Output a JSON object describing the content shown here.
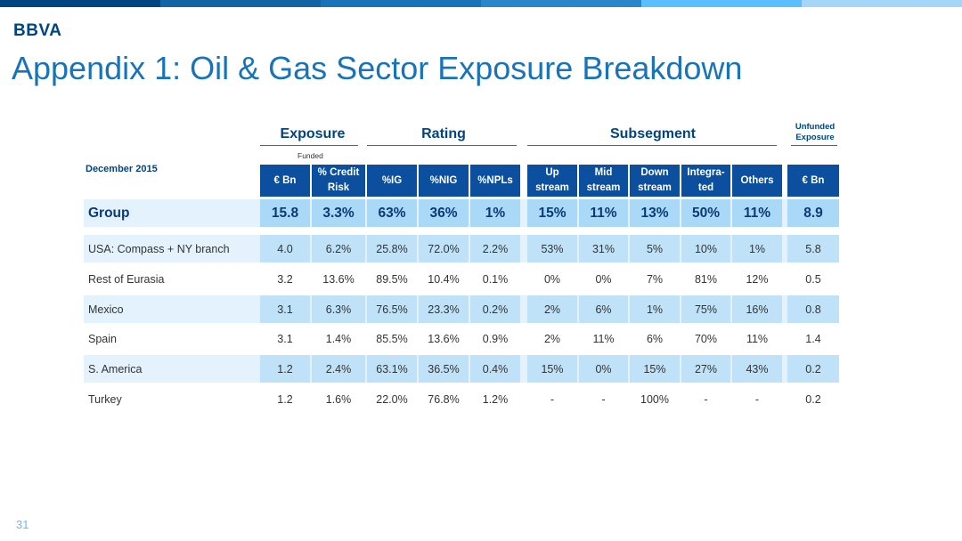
{
  "brand": {
    "logo_text": "BBVA",
    "bar_colors": [
      "#004481",
      "#1464A5",
      "#1973B8",
      "#2A86CA",
      "#5BBEFF",
      "#A5D6F7"
    ]
  },
  "title": "Appendix 1: Oil & Gas Sector Exposure Breakdown",
  "page_number": "31",
  "table": {
    "group_headers": {
      "exposure": "Exposure",
      "rating": "Rating",
      "subsegment": "Subsegment",
      "unfunded_line1": "Unfunded",
      "unfunded_line2": "Exposure"
    },
    "funded_label": "Funded",
    "date_label": "December 2015",
    "columns": [
      {
        "line1": "€ Bn",
        "line2": ""
      },
      {
        "line1": "% Credit",
        "line2": "Risk"
      },
      {
        "line1": "%IG",
        "line2": ""
      },
      {
        "line1": "%NIG",
        "line2": ""
      },
      {
        "line1": "%NPLs",
        "line2": ""
      },
      {
        "line1": "Up",
        "line2": "stream"
      },
      {
        "line1": "Mid",
        "line2": "stream"
      },
      {
        "line1": "Down",
        "line2": "stream"
      },
      {
        "line1": "Integra-",
        "line2": "ted"
      },
      {
        "line1": "Others",
        "line2": ""
      },
      {
        "line1": "€ Bn",
        "line2": ""
      }
    ],
    "group_row": {
      "label": "Group",
      "values": [
        "15.8",
        "3.3%",
        "63%",
        "36%",
        "1%",
        "15%",
        "11%",
        "13%",
        "50%",
        "11%",
        "8.9"
      ]
    },
    "rows": [
      {
        "label": "USA: Compass + NY branch",
        "values": [
          "4.0",
          "6.2%",
          "25.8%",
          "72.0%",
          "2.2%",
          "53%",
          "31%",
          "5%",
          "10%",
          "1%",
          "5.8"
        ]
      },
      {
        "label": "Rest of Eurasia",
        "values": [
          "3.2",
          "13.6%",
          "89.5%",
          "10.4%",
          "0.1%",
          "0%",
          "0%",
          "7%",
          "81%",
          "12%",
          "0.5"
        ]
      },
      {
        "label": "Mexico",
        "values": [
          "3.1",
          "6.3%",
          "76.5%",
          "23.3%",
          "0.2%",
          "2%",
          "6%",
          "1%",
          "75%",
          "16%",
          "0.8"
        ]
      },
      {
        "label": "Spain",
        "values": [
          "3.1",
          "1.4%",
          "85.5%",
          "13.6%",
          "0.9%",
          "2%",
          "11%",
          "6%",
          "70%",
          "11%",
          "1.4"
        ]
      },
      {
        "label": "S. America",
        "values": [
          "1.2",
          "2.4%",
          "63.1%",
          "36.5%",
          "0.4%",
          "15%",
          "0%",
          "15%",
          "27%",
          "43%",
          "0.2"
        ]
      },
      {
        "label": "Turkey",
        "values": [
          "1.2",
          "1.6%",
          "22.0%",
          "76.8%",
          "1.2%",
          "-",
          "-",
          "100%",
          "-",
          "-",
          "0.2"
        ]
      }
    ],
    "colors": {
      "header_fill": "#0B4F9E",
      "shade_light": "#E3F2FC",
      "shade_cell": "#BFE2F8",
      "title_blue": "#1973B8"
    }
  }
}
